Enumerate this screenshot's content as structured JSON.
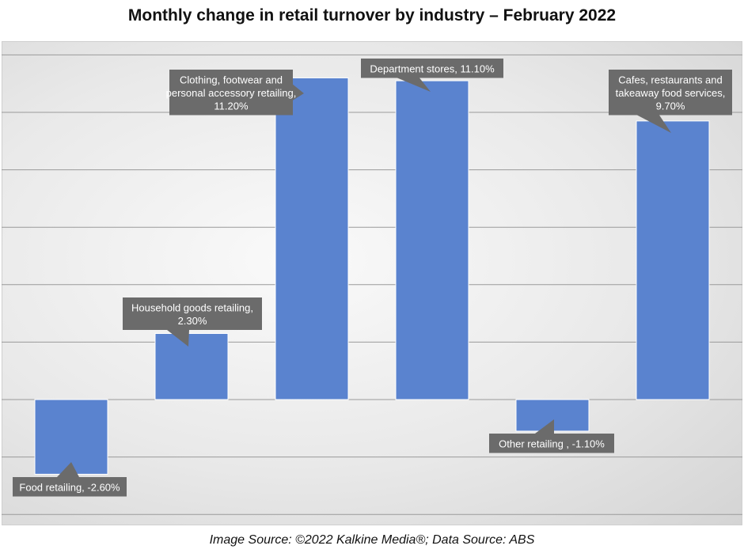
{
  "title": "Monthly change in retail turnover by industry – February 2022",
  "footer": "Image Source: ©2022 Kalkine Media®; Data Source: ABS",
  "colors": {
    "bar": "#5a83cf",
    "bar_stroke": "#ffffff",
    "callout_bg": "#6b6b6b",
    "callout_text": "#ffffff",
    "gridline": "#9a9a9a"
  },
  "chart_data": {
    "type": "bar",
    "title": "Monthly change in retail turnover by industry – February 2022",
    "categories": [
      "Food retailing",
      "Household goods retailing",
      "Clothing, footwear and personal accessory retailing",
      "Department stores",
      "Other retailing",
      "Cafes, restaurants and takeaway food services"
    ],
    "values": [
      -2.6,
      2.3,
      11.2,
      11.1,
      -1.1,
      9.7
    ],
    "unit": "%",
    "ylim": [
      -4,
      12
    ],
    "grid": true,
    "axis_labels_shown": false,
    "data_labels": [
      [
        "Food retailing, -2.60%"
      ],
      [
        "Household goods retailing,",
        "2.30%"
      ],
      [
        "Clothing, footwear and",
        "personal accessory retailing,",
        "11.20%"
      ],
      [
        "Department stores, 11.10%"
      ],
      [
        "Other retailing , -1.10%"
      ],
      [
        "Cafes, restaurants and",
        "takeaway food services,",
        "9.70%"
      ]
    ]
  }
}
